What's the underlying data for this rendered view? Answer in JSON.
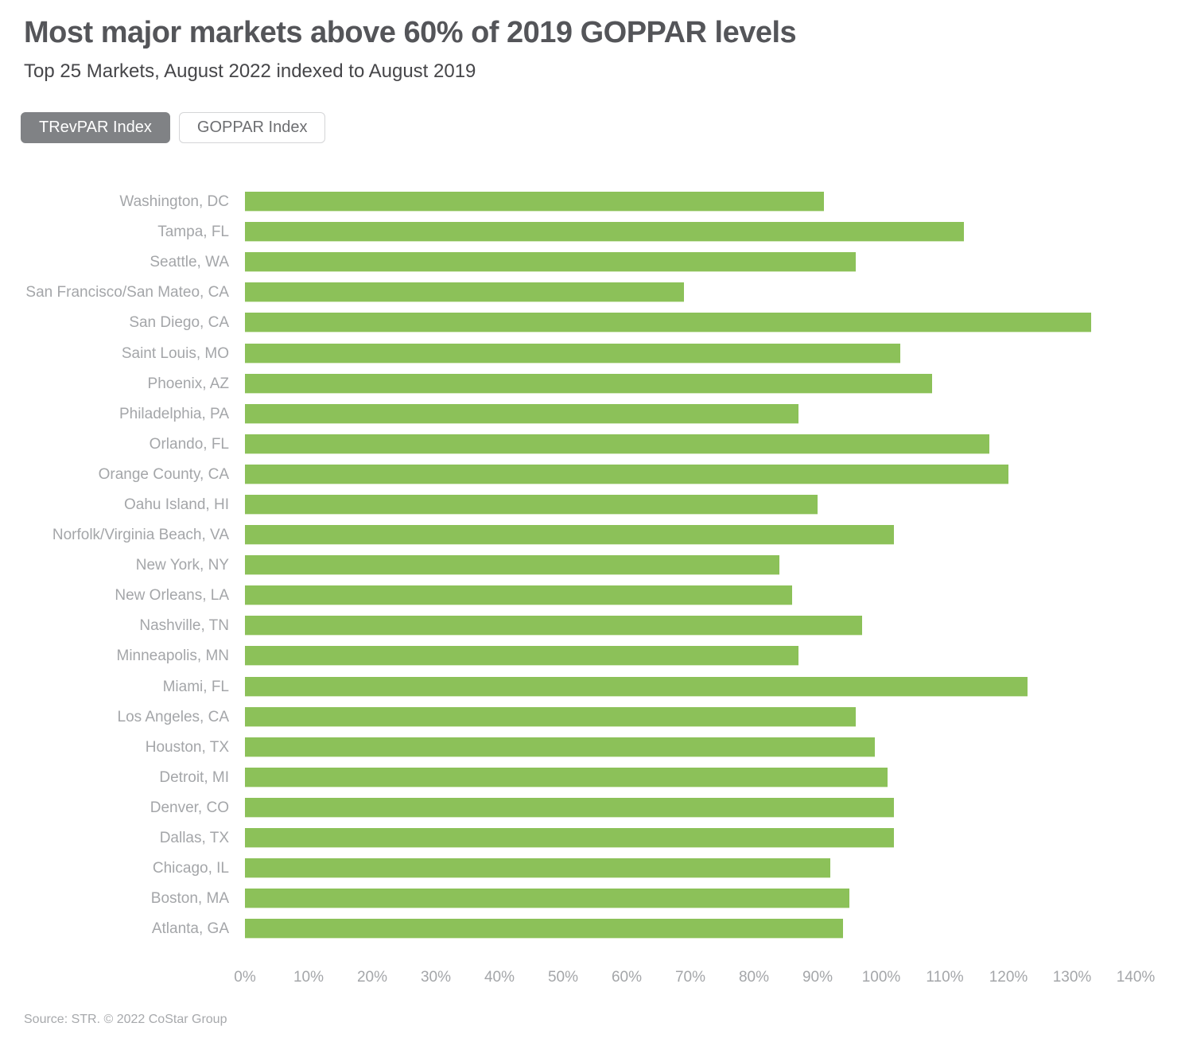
{
  "header": {
    "title": "Most major markets above 60% of 2019 GOPPAR levels",
    "subtitle": "Top 25 Markets, August 2022 indexed to August 2019"
  },
  "toggles": [
    {
      "label": "TRevPAR Index",
      "selected": true
    },
    {
      "label": "GOPPAR Index",
      "selected": false
    }
  ],
  "chart_data": {
    "type": "bar",
    "orientation": "horizontal",
    "title": "Most major markets above 60% of 2019 GOPPAR levels",
    "subtitle": "Top 25 Markets, August 2022 indexed to August 2019",
    "series_name": "TRevPAR Index",
    "unit": "%",
    "categories": [
      "Washington, DC",
      "Tampa, FL",
      "Seattle, WA",
      "San Francisco/San Mateo, CA",
      "San Diego, CA",
      "Saint Louis, MO",
      "Phoenix, AZ",
      "Philadelphia, PA",
      "Orlando, FL",
      "Orange County, CA",
      "Oahu Island, HI",
      "Norfolk/Virginia Beach, VA",
      "New York, NY",
      "New Orleans, LA",
      "Nashville, TN",
      "Minneapolis, MN",
      "Miami, FL",
      "Los Angeles, CA",
      "Houston, TX",
      "Detroit, MI",
      "Denver, CO",
      "Dallas, TX",
      "Chicago, IL",
      "Boston, MA",
      "Atlanta, GA"
    ],
    "values": [
      91,
      113,
      96,
      69,
      133,
      103,
      108,
      87,
      117,
      120,
      90,
      102,
      84,
      86,
      97,
      87,
      123,
      96,
      99,
      101,
      102,
      102,
      92,
      95,
      94
    ],
    "xlim": [
      0,
      140
    ],
    "tick_step": 10,
    "tick_labels": [
      "0%",
      "10%",
      "20%",
      "30%",
      "40%",
      "50%",
      "60%",
      "70%",
      "80%",
      "90%",
      "100%",
      "110%",
      "120%",
      "130%",
      "140%"
    ],
    "grid": false,
    "legend_position": "none",
    "bar_color": "#8cc159"
  },
  "colors": {
    "bar_green": "#8cc159",
    "title_gray": "#545559",
    "label_gray": "#a4a6a9",
    "selected_button_gray": "#808285"
  },
  "footer": {
    "source": "Source: STR. © 2022 CoStar Group"
  }
}
